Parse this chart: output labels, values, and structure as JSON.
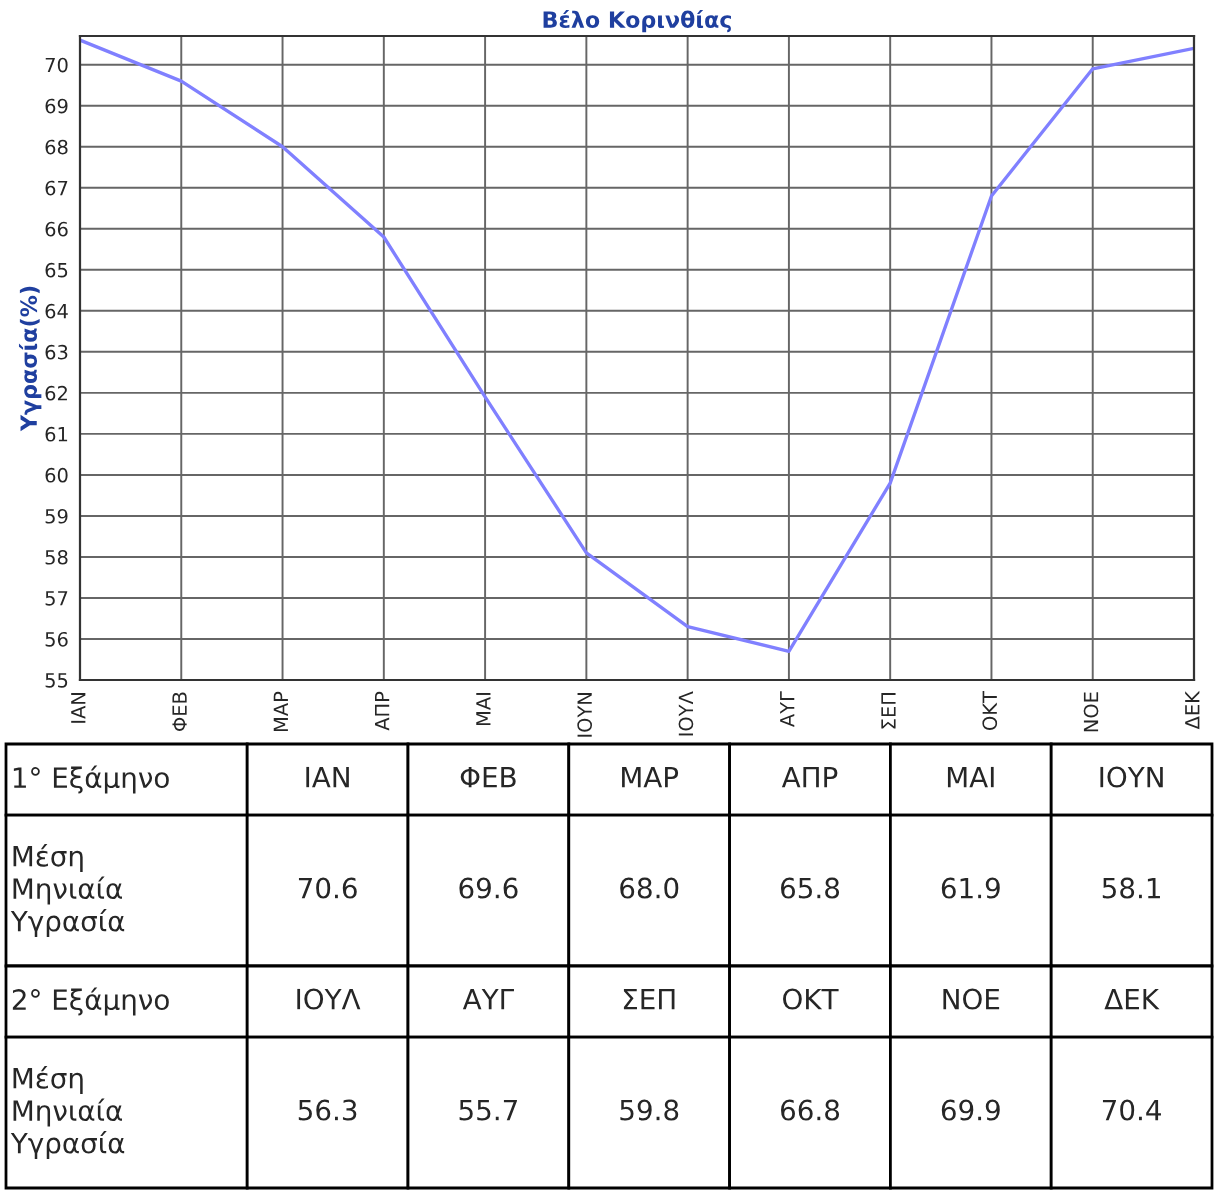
{
  "chart_data": [
    {
      "type": "line",
      "title": "Βέλο Κορινθίας",
      "ylabel": "Υγρασία(%)",
      "categories": [
        "ΙΑΝ",
        "ΦΕΒ",
        "ΜΑΡ",
        "ΑΠΡ",
        "ΜΑΙ",
        "ΙΟΥΝ",
        "ΙΟΥΛ",
        "ΑΥΓ",
        "ΣΕΠ",
        "ΟΚΤ",
        "ΝΟΕ",
        "ΔΕΚ"
      ],
      "series": [
        {
          "color": "#8080ff",
          "values": [
            70.6,
            69.6,
            68.0,
            65.8,
            61.9,
            58.1,
            56.3,
            55.7,
            59.8,
            66.8,
            69.9,
            70.4
          ]
        }
      ],
      "ylim": [
        55,
        70.7
      ],
      "yticks": [
        55,
        56,
        57,
        58,
        59,
        60,
        61,
        62,
        63,
        64,
        65,
        66,
        67,
        68,
        69,
        70
      ],
      "grid": true,
      "marker": "none",
      "line_style": "solid"
    },
    {
      "type": "other",
      "categories": [
        "ΙΑΝ",
        "ΦΕΒ",
        "ΜΑΡ",
        "ΑΠΡ",
        "ΜΑΙ",
        "ΙΟΥΝ",
        "ΙΟΥΛ",
        "ΑΥΓ",
        "ΣΕΠ",
        "ΟΚΤ",
        "ΝΟΕ",
        "ΔΕΚ"
      ],
      "value_labels": [
        "70.6",
        "69.6",
        "68.0",
        "65.8",
        "61.9",
        "58.1",
        "56.3",
        "55.7",
        "59.8",
        "66.8",
        "69.9",
        "70.4"
      ],
      "annotations": [
        "1° Εξάμηνο",
        "Μέση Μηνιαία Υγρασία",
        "2° Εξάμηνο",
        "Μέση Μηνιαία Υγρασία"
      ]
    }
  ]
}
